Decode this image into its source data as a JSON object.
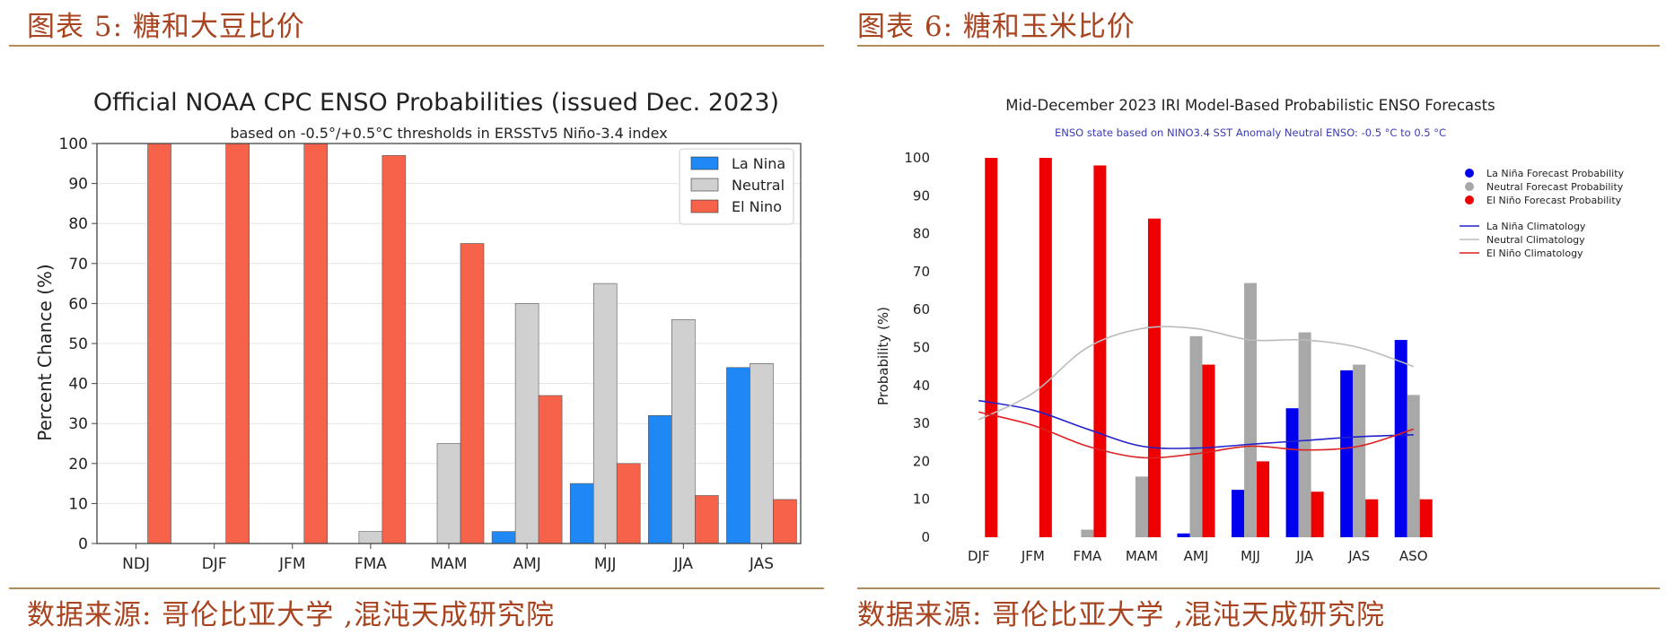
{
  "left_panel": {
    "figure_title": "图表 5:  糖和大豆比价",
    "source": "数据来源:  哥伦比亚大学 ,混沌天成研究院"
  },
  "right_panel": {
    "figure_title": "图表 6:  糖和玉米比价",
    "source": "数据来源:  哥伦比亚大学 ,混沌天成研究院"
  },
  "colors": {
    "caption": "#a8441f",
    "rule": "#b08e5a",
    "cpc_la_nina": "#1f88f5",
    "cpc_neutral": "#d0d0d0",
    "cpc_el_nino": "#f7624a",
    "iri_la_nina": "#0000ee",
    "iri_neutral": "#a8a8a8",
    "iri_el_nino": "#ee0000",
    "iri_clim_la_nina": "#2222cc",
    "iri_clim_neutral": "#bbbbbb",
    "iri_clim_el_nino": "#dd2222"
  },
  "chart_data": [
    {
      "type": "bar",
      "title": "Official NOAA CPC ENSO Probabilities (issued Dec. 2023)",
      "subtitle": "based on -0.5°/+0.5°C thresholds in ERSSTv5 Niño-3.4 index",
      "xlabel": "",
      "ylabel": "Percent Chance (%)",
      "ylim": [
        0,
        100
      ],
      "yticks": [
        0,
        10,
        20,
        30,
        40,
        50,
        60,
        70,
        80,
        90,
        100
      ],
      "grid": true,
      "legend_position": "top-right",
      "categories": [
        "NDJ",
        "DJF",
        "JFM",
        "FMA",
        "MAM",
        "AMJ",
        "MJJ",
        "JJA",
        "JAS"
      ],
      "series": [
        {
          "name": "La Nina",
          "values": [
            0,
            0,
            0,
            0,
            0,
            3,
            15,
            32,
            44
          ]
        },
        {
          "name": "Neutral",
          "values": [
            0,
            0,
            0,
            3,
            25,
            60,
            65,
            56,
            45
          ]
        },
        {
          "name": "El Nino",
          "values": [
            100,
            100,
            100,
            97,
            75,
            37,
            20,
            12,
            11
          ]
        }
      ]
    },
    {
      "type": "bar",
      "title": "Mid-December 2023 IRI Model-Based Probabilistic ENSO Forecasts",
      "subtitle": "ENSO state based on NINO3.4 SST Anomaly Neutral ENSO: -0.5 °C to 0.5 °C",
      "xlabel": "",
      "ylabel": "Probability (%)",
      "ylim": [
        0,
        100
      ],
      "yticks": [
        0,
        10,
        20,
        30,
        40,
        50,
        60,
        70,
        80,
        90,
        100
      ],
      "grid": false,
      "legend_position": "right",
      "categories": [
        "DJF",
        "JFM",
        "FMA",
        "MAM",
        "AMJ",
        "MJJ",
        "JJA",
        "JAS",
        "ASO"
      ],
      "series": [
        {
          "name": "La Niña Forecast Probability",
          "values": [
            0,
            0,
            0,
            0,
            1,
            12.5,
            34,
            44,
            52
          ]
        },
        {
          "name": "Neutral Forecast Probability",
          "values": [
            0,
            0,
            2,
            16,
            53,
            67,
            54,
            45.5,
            37.5
          ]
        },
        {
          "name": "El Niño Forecast Probability",
          "values": [
            100,
            100,
            98,
            84,
            45.5,
            20,
            12,
            10,
            10
          ]
        }
      ],
      "lines": [
        {
          "name": "La Niña Climatology",
          "values": [
            36,
            33.5,
            28.5,
            24,
            23.5,
            24.5,
            25.5,
            26.5,
            27
          ]
        },
        {
          "name": "Neutral Climatology",
          "values": [
            31,
            38,
            50,
            55,
            55,
            52,
            52,
            50,
            45
          ]
        },
        {
          "name": "El Niño Climatology",
          "values": [
            33,
            29.5,
            24,
            21,
            22,
            24,
            23,
            24,
            28.5
          ]
        }
      ]
    }
  ]
}
